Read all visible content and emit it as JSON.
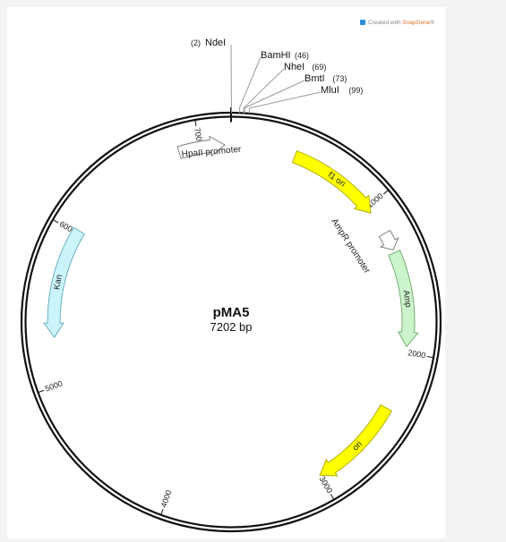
{
  "credit": {
    "prefix": "Created with ",
    "brand": "SnapGene",
    "mark": "®",
    "icon": "snapgene-logo-icon"
  },
  "plasmid": {
    "name": "pMA5",
    "size_label": "7202 bp",
    "length": 7202
  },
  "sites": [
    {
      "name": "NdeI",
      "pos": 2,
      "pos_label": "(2)"
    },
    {
      "name": "BamHI",
      "pos": 46,
      "pos_label": "(46)"
    },
    {
      "name": "NheI",
      "pos": 69,
      "pos_label": "(69)"
    },
    {
      "name": "BmtI",
      "pos": 73,
      "pos_label": "(73)"
    },
    {
      "name": "MluI",
      "pos": 99,
      "pos_label": "(99)"
    }
  ],
  "ticks": [
    "1000",
    "2000",
    "3000",
    "4000",
    "5000",
    "6000",
    "7000"
  ],
  "features": [
    {
      "name": "f1 ori",
      "color": "#ffff00",
      "stroke": "#a8a800",
      "direction": "cw",
      "label_inside": true
    },
    {
      "name": "AmpR promoter",
      "color": "#ffffff",
      "stroke": "#777777",
      "direction": "cw",
      "label_inside": false
    },
    {
      "name": "Amp",
      "color": "#ccf5cc",
      "stroke": "#6aa56a",
      "direction": "cw",
      "label_inside": true
    },
    {
      "name": "ori",
      "color": "#ffff00",
      "stroke": "#a8a800",
      "direction": "cw",
      "label_inside": true
    },
    {
      "name": "Kan",
      "color": "#ccf4fb",
      "stroke": "#5aa8b8",
      "direction": "ccw",
      "label_inside": true
    },
    {
      "name": "HpaII promoter",
      "color": "#ffffff",
      "stroke": "#777777",
      "direction": "cw",
      "label_inside": false
    }
  ]
}
